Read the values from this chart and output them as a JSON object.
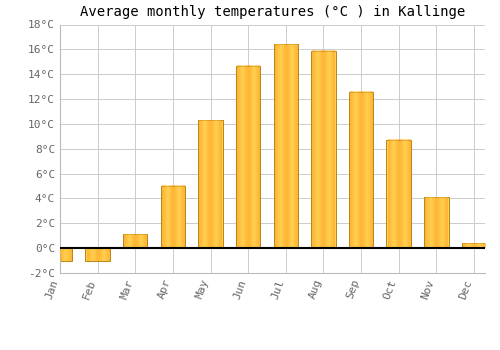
{
  "title": "Average monthly temperatures (°C ) in Kallinge",
  "months": [
    "Jan",
    "Feb",
    "Mar",
    "Apr",
    "May",
    "Jun",
    "Jul",
    "Aug",
    "Sep",
    "Oct",
    "Nov",
    "Dec"
  ],
  "temperatures": [
    -1.0,
    -1.0,
    1.1,
    5.0,
    10.3,
    14.7,
    16.4,
    15.9,
    12.6,
    8.7,
    4.1,
    0.4
  ],
  "bar_color_light": "#FFD050",
  "bar_color_dark": "#FFA020",
  "bar_edge_color": "#AA7700",
  "ylim": [
    -2,
    18
  ],
  "yticks": [
    -2,
    0,
    2,
    4,
    6,
    8,
    10,
    12,
    14,
    16,
    18
  ],
  "background_color": "#ffffff",
  "grid_color": "#cccccc",
  "title_fontsize": 10,
  "tick_fontsize": 8,
  "font_family": "monospace"
}
